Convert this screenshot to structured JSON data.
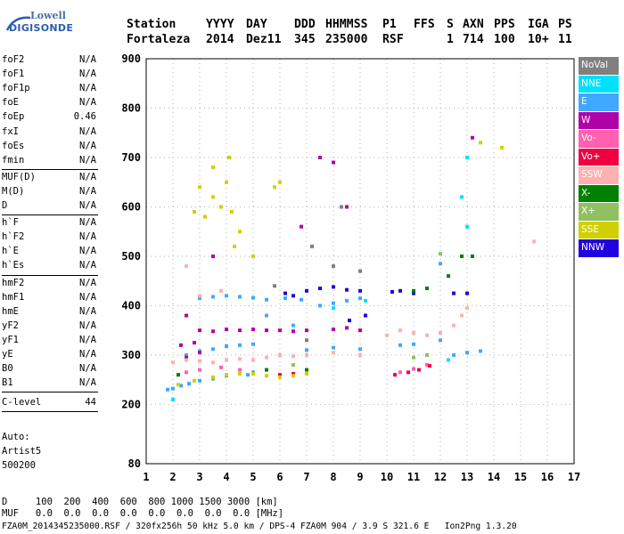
{
  "logo": {
    "line1": "Lowell",
    "line2": "DIGISONDE"
  },
  "header": {
    "labels": [
      "Station",
      "YYYY",
      "DAY",
      "DDD",
      "HHMMSS",
      "P1",
      "FFS",
      "S",
      "AXN",
      "PPS",
      "IGA",
      "PS"
    ],
    "values": [
      "Fortaleza",
      "2014",
      "Dez11",
      "345",
      "235000",
      "RSF",
      "",
      "1",
      "714",
      "100",
      "10+",
      "11"
    ]
  },
  "params_group1": [
    {
      "key": "foF2",
      "value": "N/A"
    },
    {
      "key": "foF1",
      "value": "N/A"
    },
    {
      "key": "foF1p",
      "value": "N/A"
    },
    {
      "key": "foE",
      "value": "N/A"
    },
    {
      "key": "foEp",
      "value": "0.46"
    },
    {
      "key": "fxI",
      "value": "N/A"
    },
    {
      "key": "foEs",
      "value": "N/A"
    },
    {
      "key": "fmin",
      "value": "N/A"
    }
  ],
  "params_group2": [
    {
      "key": "MUF(D)",
      "value": "N/A"
    },
    {
      "key": "M(D)",
      "value": "N/A"
    },
    {
      "key": "D",
      "value": "N/A"
    }
  ],
  "params_group3": [
    {
      "key": "h`F",
      "value": "N/A"
    },
    {
      "key": "h`F2",
      "value": "N/A"
    },
    {
      "key": "h`E",
      "value": "N/A"
    },
    {
      "key": "h`Es",
      "value": "N/A"
    }
  ],
  "params_group4": [
    {
      "key": "hmF2",
      "value": "N/A"
    },
    {
      "key": "hmF1",
      "value": "N/A"
    },
    {
      "key": "hmE",
      "value": "N/A"
    },
    {
      "key": "yF2",
      "value": "N/A"
    },
    {
      "key": "yF1",
      "value": "N/A"
    },
    {
      "key": "yE",
      "value": "N/A"
    },
    {
      "key": "B0",
      "value": "N/A"
    },
    {
      "key": "B1",
      "value": "N/A"
    }
  ],
  "clevel": {
    "key": "C-level",
    "value": "44"
  },
  "auto": {
    "line1": "Auto:",
    "line2": "Artist5",
    "line3": "500200"
  },
  "legend": [
    {
      "label": "NoVal",
      "color": "#808080"
    },
    {
      "label": "NNE",
      "color": "#00e0ff"
    },
    {
      "label": "E",
      "color": "#40a8ff"
    },
    {
      "label": "W",
      "color": "#b000a8"
    },
    {
      "label": "Vo-",
      "color": "#ff60b0"
    },
    {
      "label": "Vo+",
      "color": "#f00040"
    },
    {
      "label": "SSW",
      "color": "#ffb0b0"
    },
    {
      "label": "X-",
      "color": "#008000"
    },
    {
      "label": "X+",
      "color": "#90c060"
    },
    {
      "label": "SSE",
      "color": "#d0d000"
    },
    {
      "label": "NNW",
      "color": "#2000e0"
    }
  ],
  "bottom": {
    "d_row": "D     100  200  400  600  800 1000 1500 3000 [km]",
    "muf_row": "MUF   0.0  0.0  0.0  0.0  0.0  0.0  0.0  0.0 [MHz]",
    "footer": "FZA0M_2014345235000.RSF / 320fx256h 50 kHz 5.0 km / DPS-4 FZA0M 904 / 3.9 S 321.6 E   Ion2Png 1.3.20"
  },
  "chart_data": {
    "type": "scatter",
    "x_ticks": [
      "1",
      "2",
      "3",
      "4",
      "5",
      "6",
      "7",
      "8",
      "9",
      "10",
      "11",
      "12",
      "13",
      "14",
      "15",
      "16",
      "17"
    ],
    "y_ticks": [
      "80",
      "200",
      "300",
      "400",
      "500",
      "600",
      "700",
      "800",
      "900"
    ],
    "xlim": [
      1,
      17
    ],
    "ylim": [
      80,
      900
    ],
    "x_unit": "MHz",
    "y_unit": "km",
    "series": [
      {
        "color": "#2000e0",
        "points": [
          [
            7,
            430
          ],
          [
            7.5,
            435
          ],
          [
            8,
            438
          ],
          [
            8.5,
            432
          ],
          [
            9,
            430
          ],
          [
            9.2,
            380
          ],
          [
            8.6,
            370
          ],
          [
            6.2,
            425
          ],
          [
            6.5,
            420
          ],
          [
            10.2,
            428
          ],
          [
            10.5,
            430
          ],
          [
            11,
            425
          ],
          [
            12.5,
            425
          ],
          [
            13,
            425
          ]
        ]
      },
      {
        "color": "#40a8ff",
        "points": [
          [
            1.8,
            230
          ],
          [
            2,
            232
          ],
          [
            2.3,
            238
          ],
          [
            2.6,
            242
          ],
          [
            3,
            248
          ],
          [
            3.5,
            252
          ],
          [
            4,
            258
          ],
          [
            4.5,
            262
          ],
          [
            5,
            265
          ],
          [
            2.5,
            300
          ],
          [
            3,
            308
          ],
          [
            3.5,
            312
          ],
          [
            4,
            318
          ],
          [
            4.5,
            320
          ],
          [
            5,
            322
          ],
          [
            3,
            415
          ],
          [
            3.5,
            418
          ],
          [
            4,
            420
          ],
          [
            4.5,
            418
          ],
          [
            5,
            416
          ],
          [
            5.5,
            412
          ],
          [
            6.2,
            415
          ],
          [
            6.8,
            412
          ],
          [
            7.5,
            400
          ],
          [
            8,
            405
          ],
          [
            8.5,
            410
          ],
          [
            9,
            415
          ],
          [
            7,
            310
          ],
          [
            8,
            315
          ],
          [
            9,
            312
          ],
          [
            6,
            300
          ],
          [
            10.5,
            320
          ],
          [
            11,
            322
          ],
          [
            12,
            330
          ],
          [
            12.5,
            300
          ],
          [
            13,
            305
          ],
          [
            13.5,
            308
          ],
          [
            12,
            485
          ],
          [
            6.5,
            360
          ],
          [
            5.5,
            380
          ],
          [
            4.8,
            260
          ]
        ]
      },
      {
        "color": "#00e0ff",
        "points": [
          [
            12.8,
            620
          ],
          [
            13,
            700
          ],
          [
            2,
            210
          ],
          [
            9.2,
            410
          ],
          [
            8,
            395
          ],
          [
            12.3,
            290
          ],
          [
            13,
            560
          ]
        ]
      },
      {
        "color": "#b000a8",
        "points": [
          [
            2.3,
            320
          ],
          [
            2.8,
            325
          ],
          [
            3,
            350
          ],
          [
            3.5,
            348
          ],
          [
            4,
            352
          ],
          [
            4.5,
            350
          ],
          [
            5,
            352
          ],
          [
            5.5,
            350
          ],
          [
            6,
            350
          ],
          [
            6.5,
            348
          ],
          [
            7,
            350
          ],
          [
            8,
            352
          ],
          [
            8.5,
            355
          ],
          [
            9,
            350
          ],
          [
            3,
            305
          ],
          [
            2.5,
            295
          ],
          [
            7.5,
            700
          ],
          [
            8,
            690
          ],
          [
            8.5,
            600
          ],
          [
            6.8,
            560
          ],
          [
            3.5,
            500
          ],
          [
            13.2,
            740
          ],
          [
            2.5,
            380
          ]
        ]
      },
      {
        "color": "#ff60b0",
        "points": [
          [
            2.5,
            265
          ],
          [
            3,
            270
          ],
          [
            3.8,
            275
          ],
          [
            10.5,
            265
          ],
          [
            11,
            272
          ],
          [
            11.5,
            280
          ],
          [
            4.5,
            270
          ]
        ]
      },
      {
        "color": "#f00040",
        "points": [
          [
            10.3,
            260
          ],
          [
            10.8,
            265
          ],
          [
            11.2,
            270
          ],
          [
            11.6,
            278
          ],
          [
            6,
            260
          ],
          [
            6.5,
            262
          ]
        ]
      },
      {
        "color": "#ffb0b0",
        "points": [
          [
            2,
            285
          ],
          [
            2.5,
            290
          ],
          [
            3,
            288
          ],
          [
            3.5,
            285
          ],
          [
            4,
            290
          ],
          [
            4.5,
            292
          ],
          [
            5,
            290
          ],
          [
            5.5,
            295
          ],
          [
            6,
            300
          ],
          [
            6.5,
            298
          ],
          [
            7,
            300
          ],
          [
            8,
            305
          ],
          [
            9,
            300
          ],
          [
            10,
            340
          ],
          [
            10.5,
            350
          ],
          [
            11,
            345
          ],
          [
            11.5,
            340
          ],
          [
            12,
            345
          ],
          [
            12.5,
            360
          ],
          [
            13,
            395
          ],
          [
            12.8,
            380
          ],
          [
            2.5,
            480
          ],
          [
            3,
            420
          ],
          [
            15.5,
            530
          ],
          [
            3.8,
            430
          ]
        ]
      },
      {
        "color": "#008000",
        "points": [
          [
            12.8,
            500
          ],
          [
            13.2,
            500
          ],
          [
            11.5,
            435
          ],
          [
            11,
            430
          ],
          [
            2.2,
            260
          ],
          [
            7,
            270
          ],
          [
            5.5,
            270
          ],
          [
            12.3,
            460
          ]
        ]
      },
      {
        "color": "#90c060",
        "points": [
          [
            11,
            295
          ],
          [
            11.5,
            300
          ],
          [
            6.5,
            280
          ],
          [
            12,
            505
          ]
        ]
      },
      {
        "color": "#d0d000",
        "points": [
          [
            2.2,
            240
          ],
          [
            2.8,
            248
          ],
          [
            3.5,
            255
          ],
          [
            4,
            260
          ],
          [
            4.5,
            262
          ],
          [
            5,
            262
          ],
          [
            5.5,
            258
          ],
          [
            6,
            255
          ],
          [
            6.5,
            258
          ],
          [
            7,
            262
          ],
          [
            3,
            640
          ],
          [
            3.5,
            620
          ],
          [
            3.8,
            600
          ],
          [
            4,
            650
          ],
          [
            4.2,
            590
          ],
          [
            4.5,
            550
          ],
          [
            3.2,
            580
          ],
          [
            2.8,
            590
          ],
          [
            5.8,
            640
          ],
          [
            6,
            650
          ],
          [
            4.3,
            520
          ],
          [
            5,
            500
          ],
          [
            13.5,
            730
          ],
          [
            14.3,
            720
          ],
          [
            3.5,
            680
          ],
          [
            4.1,
            700
          ]
        ]
      },
      {
        "color": "#808080",
        "points": [
          [
            7.2,
            520
          ],
          [
            8,
            480
          ],
          [
            9,
            470
          ],
          [
            8.3,
            600
          ],
          [
            7,
            330
          ],
          [
            5.8,
            440
          ]
        ]
      }
    ]
  }
}
